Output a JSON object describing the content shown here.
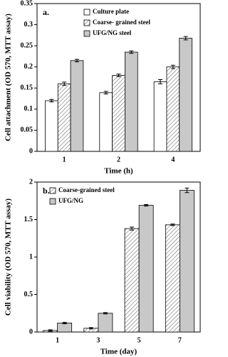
{
  "chart_data": [
    {
      "type": "bar",
      "title": "a.",
      "ylabel": "Cell attachment (OD 570, MTT assay)",
      "xlabel": "Time (h)",
      "categories": [
        "1",
        "2",
        "4"
      ],
      "series": [
        {
          "name": "Culture plate",
          "color": "#ffffff",
          "hatch": false,
          "values": [
            0.12,
            0.139,
            0.165
          ],
          "errors": [
            0.003,
            0.003,
            0.005
          ]
        },
        {
          "name": "Coarse- grained steel",
          "color": "#ffffff",
          "hatch": true,
          "values": [
            0.16,
            0.18,
            0.2
          ],
          "errors": [
            0.004,
            0.003,
            0.004
          ]
        },
        {
          "name": "UFG/NG steel",
          "color": "#c8c8c8",
          "hatch": false,
          "values": [
            0.215,
            0.235,
            0.268
          ],
          "errors": [
            0.003,
            0.003,
            0.004
          ]
        }
      ],
      "ylim": [
        0,
        0.35
      ],
      "yticks": [
        0,
        0.05,
        0.1,
        0.15,
        0.2,
        0.25,
        0.3,
        0.35
      ],
      "legend": "upper left"
    },
    {
      "type": "bar",
      "title": "b.",
      "ylabel": "Cell viability (OD 570, MTT assay)",
      "xlabel": "Time (day)",
      "categories": [
        "1",
        "3",
        "5",
        "7"
      ],
      "series": [
        {
          "name": "Coarse-grained steel",
          "color": "#ffffff",
          "hatch": true,
          "values": [
            0.02,
            0.05,
            1.38,
            1.43
          ],
          "errors": [
            0.01,
            0.01,
            0.02,
            0.01
          ]
        },
        {
          "name": "UFG/NG",
          "color": "#c8c8c8",
          "hatch": false,
          "values": [
            0.12,
            0.25,
            1.69,
            1.89
          ],
          "errors": [
            0.01,
            0.01,
            0.01,
            0.03
          ]
        }
      ],
      "ylim": [
        0,
        2
      ],
      "yticks": [
        0,
        0.5,
        1,
        1.5,
        2
      ],
      "legend": "upper left"
    }
  ]
}
